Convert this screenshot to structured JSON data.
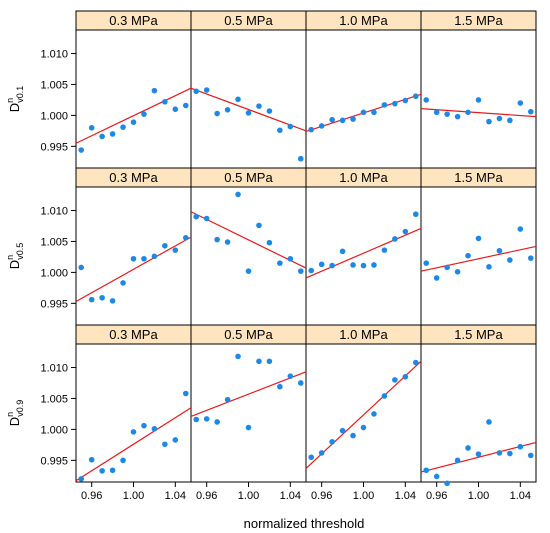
{
  "chart_data": {
    "type": "scatter",
    "xlabel": "normalized threshold",
    "column_labels": [
      "0.3 MPa",
      "0.5 MPa",
      "1.0 MPa",
      "1.5 MPa"
    ],
    "row_labels": [
      {
        "base": "D",
        "sup": "n",
        "sub": "v0.1"
      },
      {
        "base": "D",
        "sup": "n",
        "sub": "v0.5"
      },
      {
        "base": "D",
        "sup": "n",
        "sub": "v0.9"
      }
    ],
    "xlim": [
      0.945,
      1.055
    ],
    "xticks": [
      0.96,
      1.0,
      1.04
    ],
    "xtick_labels": [
      "0.96",
      "1.00",
      "1.04"
    ],
    "ylim": [
      0.9915,
      1.0138
    ],
    "yticks": [
      0.995,
      1.0,
      1.005,
      1.01
    ],
    "ytick_labels": [
      "0.995",
      "1.000",
      "1.005",
      "1.010"
    ],
    "series_color": "#1e88e5",
    "fit_color": "#e41a1c",
    "panels": [
      {
        "row": 0,
        "col": 0,
        "x": [
          0.95,
          0.96,
          0.97,
          0.98,
          0.99,
          1.0,
          1.01,
          1.02,
          1.03,
          1.04,
          1.05
        ],
        "y": [
          0.9944,
          0.998,
          0.9966,
          0.997,
          0.9981,
          0.9989,
          1.0002,
          1.004,
          1.0022,
          1.001,
          1.0016
        ],
        "fit": [
          0.9955,
          1.0044
        ]
      },
      {
        "row": 0,
        "col": 1,
        "x": [
          0.95,
          0.96,
          0.97,
          0.98,
          0.99,
          1.0,
          1.01,
          1.02,
          1.03,
          1.04,
          1.05
        ],
        "y": [
          1.0039,
          1.0041,
          1.0003,
          1.0009,
          1.0026,
          1.0004,
          1.0015,
          1.0007,
          0.9976,
          0.9982,
          0.993
        ],
        "fit": [
          1.0044,
          0.9975
        ]
      },
      {
        "row": 0,
        "col": 2,
        "x": [
          0.95,
          0.96,
          0.97,
          0.98,
          0.99,
          1.0,
          1.01,
          1.02,
          1.03,
          1.04,
          1.05
        ],
        "y": [
          0.9977,
          0.9983,
          0.9993,
          0.9992,
          0.9994,
          1.0005,
          1.0005,
          1.0017,
          1.0019,
          1.0024,
          1.0031
        ],
        "fit": [
          0.9974,
          1.0034
        ]
      },
      {
        "row": 0,
        "col": 3,
        "x": [
          0.95,
          0.96,
          0.97,
          0.98,
          0.99,
          1.0,
          1.01,
          1.02,
          1.03,
          1.04,
          1.05
        ],
        "y": [
          1.0025,
          1.0005,
          1.0002,
          0.9998,
          1.0005,
          1.0025,
          0.999,
          0.9995,
          0.9992,
          1.002,
          1.0006
        ],
        "fit": [
          1.0011,
          0.9998
        ]
      },
      {
        "row": 1,
        "col": 0,
        "x": [
          0.95,
          0.96,
          0.97,
          0.98,
          0.99,
          1.0,
          1.01,
          1.02,
          1.03,
          1.04,
          1.05
        ],
        "y": [
          1.0008,
          0.9956,
          0.9959,
          0.9954,
          0.9983,
          1.0022,
          1.0022,
          1.0026,
          1.0043,
          1.0036,
          1.0056
        ],
        "fit": [
          0.9953,
          1.0057
        ]
      },
      {
        "row": 1,
        "col": 1,
        "x": [
          0.95,
          0.96,
          0.97,
          0.98,
          0.99,
          1.0,
          1.01,
          1.02,
          1.03,
          1.04,
          1.05
        ],
        "y": [
          1.009,
          1.0087,
          1.0053,
          1.0049,
          1.0126,
          1.0002,
          1.0076,
          1.0048,
          1.0015,
          1.0022,
          1.0002
        ],
        "fit": [
          1.0098,
          1.0007
        ]
      },
      {
        "row": 1,
        "col": 2,
        "x": [
          0.95,
          0.96,
          0.97,
          0.98,
          0.99,
          1.0,
          1.01,
          1.02,
          1.03,
          1.04,
          1.05
        ],
        "y": [
          1.0003,
          1.0013,
          1.0011,
          1.0034,
          1.0012,
          1.0011,
          1.0012,
          1.0036,
          1.0054,
          1.0066,
          1.0094
        ],
        "fit": [
          0.9991,
          1.0071
        ]
      },
      {
        "row": 1,
        "col": 3,
        "x": [
          0.95,
          0.96,
          0.97,
          0.98,
          0.99,
          1.0,
          1.01,
          1.02,
          1.03,
          1.04,
          1.05
        ],
        "y": [
          1.0015,
          0.9991,
          1.0008,
          1.0001,
          1.0027,
          1.0055,
          1.0009,
          1.0035,
          1.002,
          1.007,
          1.0023
        ],
        "fit": [
          1.0002,
          1.0042
        ]
      },
      {
        "row": 2,
        "col": 0,
        "x": [
          0.95,
          0.96,
          0.97,
          0.98,
          0.99,
          1.0,
          1.01,
          1.02,
          1.03,
          1.04,
          1.05
        ],
        "y": [
          0.992,
          0.9951,
          0.9933,
          0.9934,
          0.995,
          0.9996,
          1.0006,
          1.0001,
          0.9976,
          0.9983,
          1.0058
        ],
        "fit": [
          0.9917,
          1.0035
        ]
      },
      {
        "row": 2,
        "col": 1,
        "x": [
          0.95,
          0.96,
          0.97,
          0.98,
          0.99,
          1.0,
          1.01,
          1.02,
          1.03,
          1.04,
          1.05
        ],
        "y": [
          1.0016,
          1.0017,
          1.0012,
          1.0048,
          1.0118,
          1.0003,
          1.011,
          1.011,
          1.0069,
          1.0086,
          1.0075
        ],
        "fit": [
          1.0021,
          1.0093
        ]
      },
      {
        "row": 2,
        "col": 2,
        "x": [
          0.95,
          0.96,
          0.97,
          0.98,
          0.99,
          1.0,
          1.01,
          1.02,
          1.03,
          1.04,
          1.05
        ],
        "y": [
          0.9955,
          0.9962,
          0.998,
          0.9998,
          0.999,
          1.0003,
          1.0025,
          1.0054,
          1.008,
          1.0085,
          1.0108
        ],
        "fit": [
          0.9937,
          1.011
        ]
      },
      {
        "row": 2,
        "col": 3,
        "x": [
          0.95,
          0.96,
          0.97,
          0.98,
          0.99,
          1.0,
          1.01,
          1.02,
          1.03,
          1.04,
          1.05
        ],
        "y": [
          0.9934,
          0.9924,
          0.9913,
          0.995,
          0.997,
          0.996,
          1.0012,
          0.9962,
          0.9961,
          0.9972,
          0.9958
        ],
        "fit": [
          0.9931,
          0.9979
        ]
      }
    ]
  }
}
